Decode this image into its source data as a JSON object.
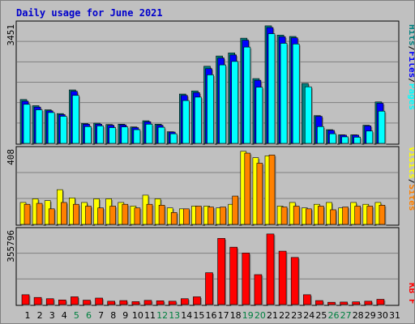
{
  "chart_data": {
    "type": "bar",
    "title": "Daily usage for June 2021",
    "categories": [
      "1",
      "2",
      "3",
      "4",
      "5",
      "6",
      "7",
      "8",
      "9",
      "10",
      "11",
      "12",
      "13",
      "14",
      "15",
      "16",
      "17",
      "18",
      "19",
      "20",
      "21",
      "22",
      "23",
      "24",
      "25",
      "26",
      "27",
      "28",
      "29",
      "30",
      "31"
    ],
    "weekend_days": [
      "5",
      "6",
      "12",
      "13",
      "19",
      "20",
      "26",
      "27"
    ],
    "grid": true,
    "legend_placement": "right",
    "colors": {
      "hits": "#008080",
      "files": "#0000ff",
      "pages": "#00ffff",
      "visits": "#ffff00",
      "sites": "#ff8000",
      "kbf": "#ff0000",
      "weekend_label": "#008040",
      "weekday_label": "#000000",
      "title": "#0000cc",
      "background": "#c0c0c0",
      "plot": "#c0c0c0"
    },
    "panels": [
      {
        "id": "hits_files_pages",
        "ymax_label": "3451",
        "ylim": [
          0,
          3451
        ],
        "series": [
          {
            "name": "Hits",
            "values": [
              1280,
              1100,
              980,
              870,
              1560,
              580,
              590,
              550,
              560,
              480,
              660,
              560,
              340,
              1440,
              1530,
              2250,
              2550,
              2640,
              3070,
              1890,
              3430,
              3160,
              3120,
              1750,
              810,
              400,
              250,
              250,
              530,
              1210,
              0
            ]
          },
          {
            "name": "Files",
            "values": [
              1230,
              1060,
              950,
              840,
              1520,
              560,
              560,
              530,
              540,
              460,
              630,
              530,
              330,
              1400,
              1480,
              2180,
              2490,
              2580,
              3010,
              1840,
              3380,
              3110,
              3080,
              0,
              790,
              380,
              240,
              240,
              510,
              1170,
              0
            ]
          },
          {
            "name": "Pages",
            "values": [
              1140,
              980,
              900,
              790,
              1400,
              490,
              510,
              460,
              480,
              400,
              560,
              470,
              280,
              1250,
              1350,
              2000,
              2290,
              2390,
              2810,
              1640,
              3200,
              2920,
              2900,
              1650,
              490,
              280,
              190,
              180,
              360,
              940,
              0
            ]
          }
        ]
      },
      {
        "id": "visits_sites",
        "ymax_label": "408",
        "ylim": [
          0,
          408
        ],
        "series": [
          {
            "name": "Visits",
            "values": [
              120,
              140,
              130,
              190,
              145,
              120,
              140,
              140,
              120,
              100,
              160,
              140,
              90,
              85,
              100,
              100,
              90,
              110,
              400,
              365,
              375,
              100,
              120,
              90,
              110,
              120,
              90,
              120,
              110,
              120,
              0
            ]
          },
          {
            "name": "Sites",
            "values": [
              110,
              115,
              85,
              120,
              110,
              100,
              90,
              100,
              110,
              90,
              110,
              105,
              65,
              85,
              100,
              95,
              95,
              155,
              390,
              335,
              380,
              95,
              100,
              85,
              100,
              80,
              95,
              100,
              100,
              105,
              0
            ]
          }
        ]
      },
      {
        "id": "kbf",
        "ymax_label": "355796",
        "ylim": [
          0,
          355796
        ],
        "series": [
          {
            "name": "KB F",
            "values": [
              47000,
              34000,
              28000,
              22000,
              37000,
              21000,
              31000,
              16000,
              19000,
              14000,
              20000,
              18000,
              16000,
              28000,
              37000,
              152000,
              316000,
              274000,
              246000,
              143000,
              337000,
              255000,
              225000,
              47000,
              19000,
              11000,
              12000,
              13000,
              16000,
              25000,
              0
            ]
          }
        ]
      }
    ]
  }
}
